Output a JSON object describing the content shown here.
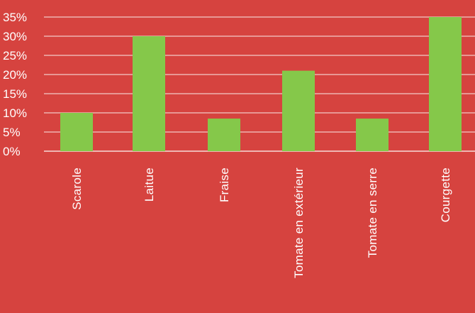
{
  "colors": {
    "background": "#d6433f",
    "bar": "#85c84a",
    "grid": "#f3c9c6",
    "text": "#ffffff"
  },
  "chart_data": {
    "type": "bar",
    "title": "",
    "xlabel": "",
    "ylabel": "",
    "categories": [
      "Scarole",
      "Laitue",
      "Fraise",
      "Tomate en extérieur",
      "Tomate en serre",
      "Courgette"
    ],
    "values": [
      10,
      30,
      8.5,
      21,
      8.5,
      35
    ],
    "ylim": [
      0,
      35
    ],
    "yticks": [
      0,
      5,
      10,
      15,
      20,
      25,
      30,
      35
    ],
    "ytick_labels": [
      "0%",
      "5%",
      "10%",
      "15%",
      "20%",
      "25%",
      "30%",
      "35%"
    ],
    "grid": true,
    "legend": "none"
  }
}
